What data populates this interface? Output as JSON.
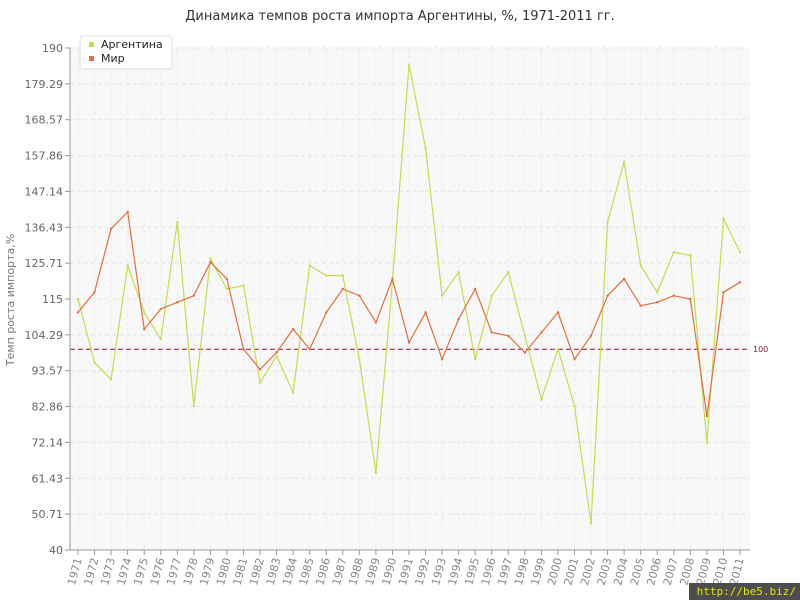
{
  "chart_data": {
    "type": "line",
    "title": "Динамика темпов роста импорта Аргентины, %, 1971-2011 гг.",
    "xlabel": "",
    "ylabel": "Темп роста импорта,%",
    "ylim": [
      40,
      190
    ],
    "yticks": [
      "40",
      "50.71",
      "61.43",
      "72.14",
      "82.86",
      "93.57",
      "104.29",
      "115",
      "125.71",
      "136.43",
      "147.14",
      "157.86",
      "168.57",
      "179.29",
      "190"
    ],
    "grid": true,
    "legend_position": "top-left",
    "x": [
      "1971",
      "1972",
      "1973",
      "1974",
      "1975",
      "1976",
      "1977",
      "1978",
      "1979",
      "1980",
      "1981",
      "1982",
      "1983",
      "1984",
      "1985",
      "1986",
      "1987",
      "1988",
      "1989",
      "1990",
      "1991",
      "1992",
      "1993",
      "1994",
      "1995",
      "1996",
      "1997",
      "1998",
      "1999",
      "2000",
      "2001",
      "2002",
      "2003",
      "2004",
      "2005",
      "2006",
      "2007",
      "2008",
      "2009",
      "2010",
      "2011"
    ],
    "series": [
      {
        "name": "Аргентина",
        "color": "#c2dd4e",
        "values": [
          115,
          96,
          91,
          125,
          111,
          103,
          138,
          83,
          127,
          118,
          119,
          90,
          98,
          87,
          125,
          122,
          122,
          97,
          63,
          120,
          185,
          160,
          116,
          123,
          97,
          116,
          123,
          104,
          85,
          100,
          83,
          48,
          138,
          156,
          125,
          117,
          129,
          128,
          72,
          139,
          129
        ]
      },
      {
        "name": "Мир",
        "color": "#e07040",
        "values": [
          111,
          117,
          136,
          141,
          106,
          112,
          114,
          116,
          126,
          121,
          100,
          94,
          99,
          106,
          100,
          111,
          118,
          116,
          108,
          121,
          102,
          111,
          97,
          109,
          118,
          105,
          104,
          99,
          105,
          111,
          97,
          104,
          116,
          121,
          113,
          114,
          116,
          115,
          80,
          117,
          120
        ]
      }
    ],
    "reference_line": {
      "value": 100,
      "label": "100",
      "color": "#8b1a3a"
    }
  },
  "watermark": "http://be5.biz/"
}
